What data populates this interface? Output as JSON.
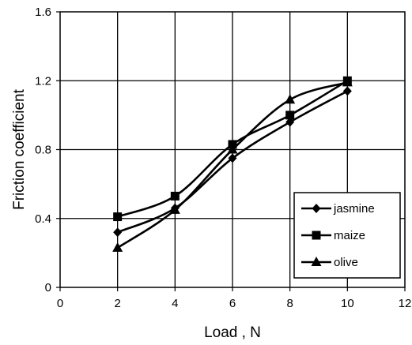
{
  "chart_data": {
    "type": "line",
    "xlabel": "Load , N",
    "ylabel": "Friction coefficient",
    "xlim": [
      0,
      12
    ],
    "ylim": [
      0,
      1.6
    ],
    "x_ticks": [
      "0",
      "2",
      "4",
      "6",
      "8",
      "10",
      "12"
    ],
    "y_ticks": [
      "0",
      "0.4",
      "0.8",
      "1.2",
      "1.6"
    ],
    "x_tick_values": [
      0,
      2,
      4,
      6,
      8,
      10,
      12
    ],
    "y_tick_values": [
      0,
      0.4,
      0.8,
      1.2,
      1.6
    ],
    "grid": true,
    "legend_position": "bottom-right",
    "x": [
      2,
      4,
      6,
      8,
      10
    ],
    "series": [
      {
        "name": "jasmine",
        "marker": "diamond",
        "values": [
          0.32,
          0.46,
          0.75,
          0.96,
          1.14
        ]
      },
      {
        "name": "maize",
        "marker": "square",
        "values": [
          0.41,
          0.53,
          0.83,
          1.0,
          1.2
        ]
      },
      {
        "name": "olive",
        "marker": "triangle",
        "values": [
          0.23,
          0.45,
          0.8,
          1.09,
          1.19
        ]
      }
    ],
    "line_color": "#000000"
  }
}
